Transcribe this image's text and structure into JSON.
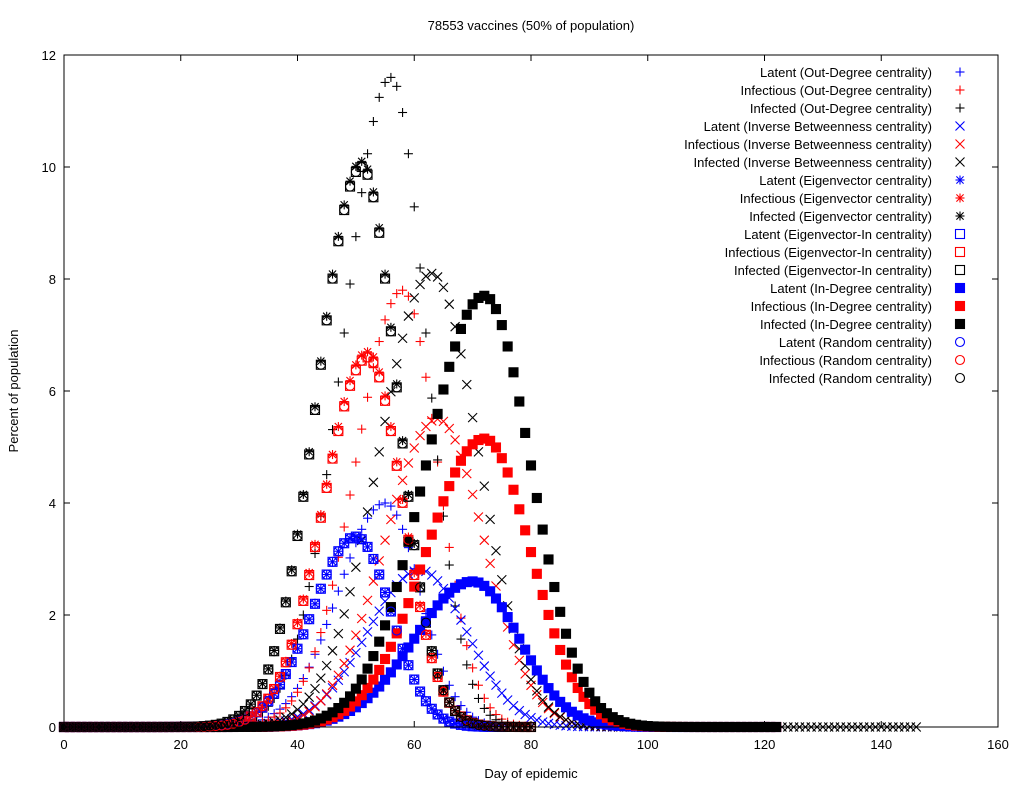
{
  "chart_data": {
    "type": "scatter",
    "title": "78553 vaccines (50% of population)",
    "xlabel": "Day of epidemic",
    "ylabel": "Percent of population",
    "xlim": [
      0,
      160
    ],
    "ylim": [
      0,
      12
    ],
    "xticks": [
      0,
      20,
      40,
      60,
      80,
      100,
      120,
      140,
      160
    ],
    "yticks": [
      0,
      2,
      4,
      6,
      8,
      10,
      12
    ],
    "legend_position": "top-right",
    "series": [
      {
        "name": "Latent (Out-Degree centrality)",
        "marker": "plus",
        "color": "#0000ff",
        "peak_day": 55,
        "peak": 4.0,
        "width_left": 8,
        "width_right": 6,
        "end_day": 75
      },
      {
        "name": "Infectious (Out-Degree centrality)",
        "marker": "plus",
        "color": "#ff0000",
        "peak_day": 58,
        "peak": 7.8,
        "width_left": 8,
        "width_right": 6,
        "end_day": 80
      },
      {
        "name": "Infected (Out-Degree centrality)",
        "marker": "plus",
        "color": "#000000",
        "peak_day": 56,
        "peak": 11.6,
        "width_left": 8,
        "width_right": 6,
        "end_day": 80
      },
      {
        "name": "Latent (Inverse Betweenness centrality)",
        "marker": "x",
        "color": "#0000ff",
        "peak_day": 61,
        "peak": 2.8,
        "width_left": 9,
        "width_right": 8,
        "end_day": 95
      },
      {
        "name": "Infectious (Inverse Betweenness centrality)",
        "marker": "x",
        "color": "#ff0000",
        "peak_day": 64,
        "peak": 5.5,
        "width_left": 9,
        "width_right": 8,
        "end_day": 110
      },
      {
        "name": "Infected (Inverse Betweenness centrality)",
        "marker": "x",
        "color": "#000000",
        "peak_day": 63,
        "peak": 8.1,
        "width_left": 9,
        "width_right": 8,
        "end_day": 146
      },
      {
        "name": "Latent (Eigenvector centrality)",
        "marker": "star",
        "color": "#0000ff",
        "peak_day": 50,
        "peak": 3.4,
        "width_left": 7.5,
        "width_right": 6,
        "end_day": 75
      },
      {
        "name": "Infectious (Eigenvector centrality)",
        "marker": "star",
        "color": "#ff0000",
        "peak_day": 52,
        "peak": 6.7,
        "width_left": 7.5,
        "width_right": 6,
        "end_day": 80
      },
      {
        "name": "Infected (Eigenvector centrality)",
        "marker": "star",
        "color": "#000000",
        "peak_day": 51,
        "peak": 10.1,
        "width_left": 7.5,
        "width_right": 6,
        "end_day": 80
      },
      {
        "name": "Latent (Eigenvector-In centrality)",
        "marker": "square",
        "color": "#0000ff",
        "peak_day": 50,
        "peak": 3.4,
        "width_left": 7.5,
        "width_right": 6,
        "end_day": 75
      },
      {
        "name": "Infectious (Eigenvector-In centrality)",
        "marker": "square",
        "color": "#ff0000",
        "peak_day": 52,
        "peak": 6.6,
        "width_left": 7.5,
        "width_right": 6,
        "end_day": 80
      },
      {
        "name": "Infected (Eigenvector-In centrality)",
        "marker": "square",
        "color": "#000000",
        "peak_day": 51,
        "peak": 10.0,
        "width_left": 7.5,
        "width_right": 6,
        "end_day": 80
      },
      {
        "name": "Latent (In-Degree centrality)",
        "marker": "square-filled",
        "color": "#0000ff",
        "peak_day": 70,
        "peak": 2.6,
        "width_left": 10,
        "width_right": 8,
        "end_day": 122
      },
      {
        "name": "Infectious (In-Degree centrality)",
        "marker": "square-filled",
        "color": "#ff0000",
        "peak_day": 72,
        "peak": 5.15,
        "width_left": 10,
        "width_right": 8,
        "end_day": 122
      },
      {
        "name": "Infected (In-Degree centrality)",
        "marker": "square-filled",
        "color": "#000000",
        "peak_day": 72,
        "peak": 7.7,
        "width_left": 10,
        "width_right": 8,
        "end_day": 122
      },
      {
        "name": "Latent (Random centrality)",
        "marker": "circle",
        "color": "#0000ff",
        "peak_day": 50,
        "peak": 3.4,
        "width_left": 7.5,
        "width_right": 6,
        "end_day": 75
      },
      {
        "name": "Infectious (Random centrality)",
        "marker": "circle",
        "color": "#ff0000",
        "peak_day": 52,
        "peak": 6.6,
        "width_left": 7.5,
        "width_right": 6,
        "end_day": 80
      },
      {
        "name": "Infected (Random centrality)",
        "marker": "circle",
        "color": "#000000",
        "peak_day": 51,
        "peak": 10.0,
        "width_left": 7.5,
        "width_right": 6,
        "end_day": 80
      }
    ]
  }
}
